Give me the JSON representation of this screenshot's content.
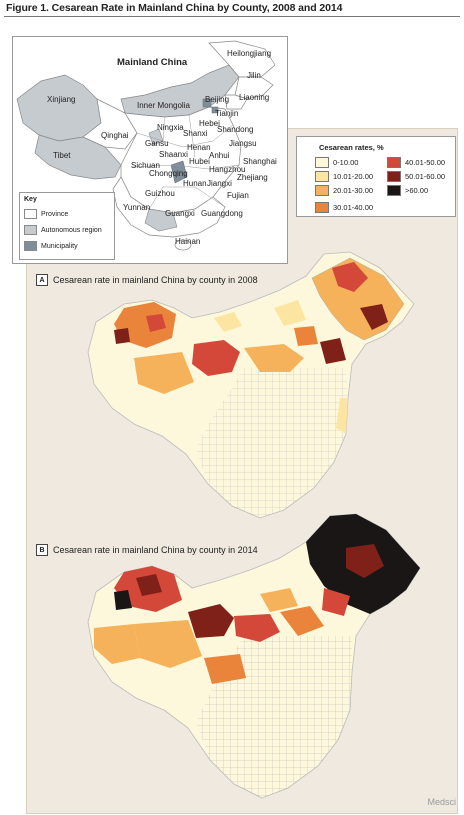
{
  "figure": {
    "title": "Figure 1. Cesarean Rate in Mainland China by County, 2008 and 2014"
  },
  "overview_map": {
    "title": "Mainland China",
    "provinces": [
      "Heilongjiang",
      "Jilin",
      "Liaoning",
      "Xinjiang",
      "Inner Mongolia",
      "Beijing",
      "Tianjin",
      "Hebei",
      "Qinghai",
      "Ningxia",
      "Shanxi",
      "Shandong",
      "Tibet",
      "Gansu",
      "Shaanxi",
      "Henan",
      "Jiangsu",
      "Anhui",
      "Shanghai",
      "Sichuan",
      "Hubei",
      "Hangzhou",
      "Chongqing",
      "Zhejiang",
      "Hunan",
      "Jiangxi",
      "Guizhou",
      "Fujian",
      "Yunnan",
      "Guangxi",
      "Guangdong",
      "Hainan"
    ],
    "key": {
      "title": "Key",
      "items": [
        {
          "label": "Province",
          "color": "#ffffff"
        },
        {
          "label": "Autonomous region",
          "color": "#c6cbd0"
        },
        {
          "label": "Municipality",
          "color": "#7f8e9b"
        }
      ]
    }
  },
  "legend": {
    "title": "Cesarean rates, %",
    "items": [
      {
        "label": "0-10.00",
        "color": "#fdf8dc"
      },
      {
        "label": "10.01-20.00",
        "color": "#fbe5a0"
      },
      {
        "label": "20.01-30.00",
        "color": "#f5b25a"
      },
      {
        "label": "30.01-40.00",
        "color": "#e9843a"
      },
      {
        "label": "40.01-50.00",
        "color": "#d4483a"
      },
      {
        "label": ">60.00",
        "color": "#1b1616"
      },
      {
        "label": "50.01-60.00",
        "color": "#7f2118"
      }
    ]
  },
  "panels": [
    {
      "letter": "A",
      "title": "Cesarean rate in mainland China by county in 2008"
    },
    {
      "letter": "B",
      "title": "Cesarean rate in mainland China by county in 2014"
    }
  ],
  "watermark": "Medsci"
}
